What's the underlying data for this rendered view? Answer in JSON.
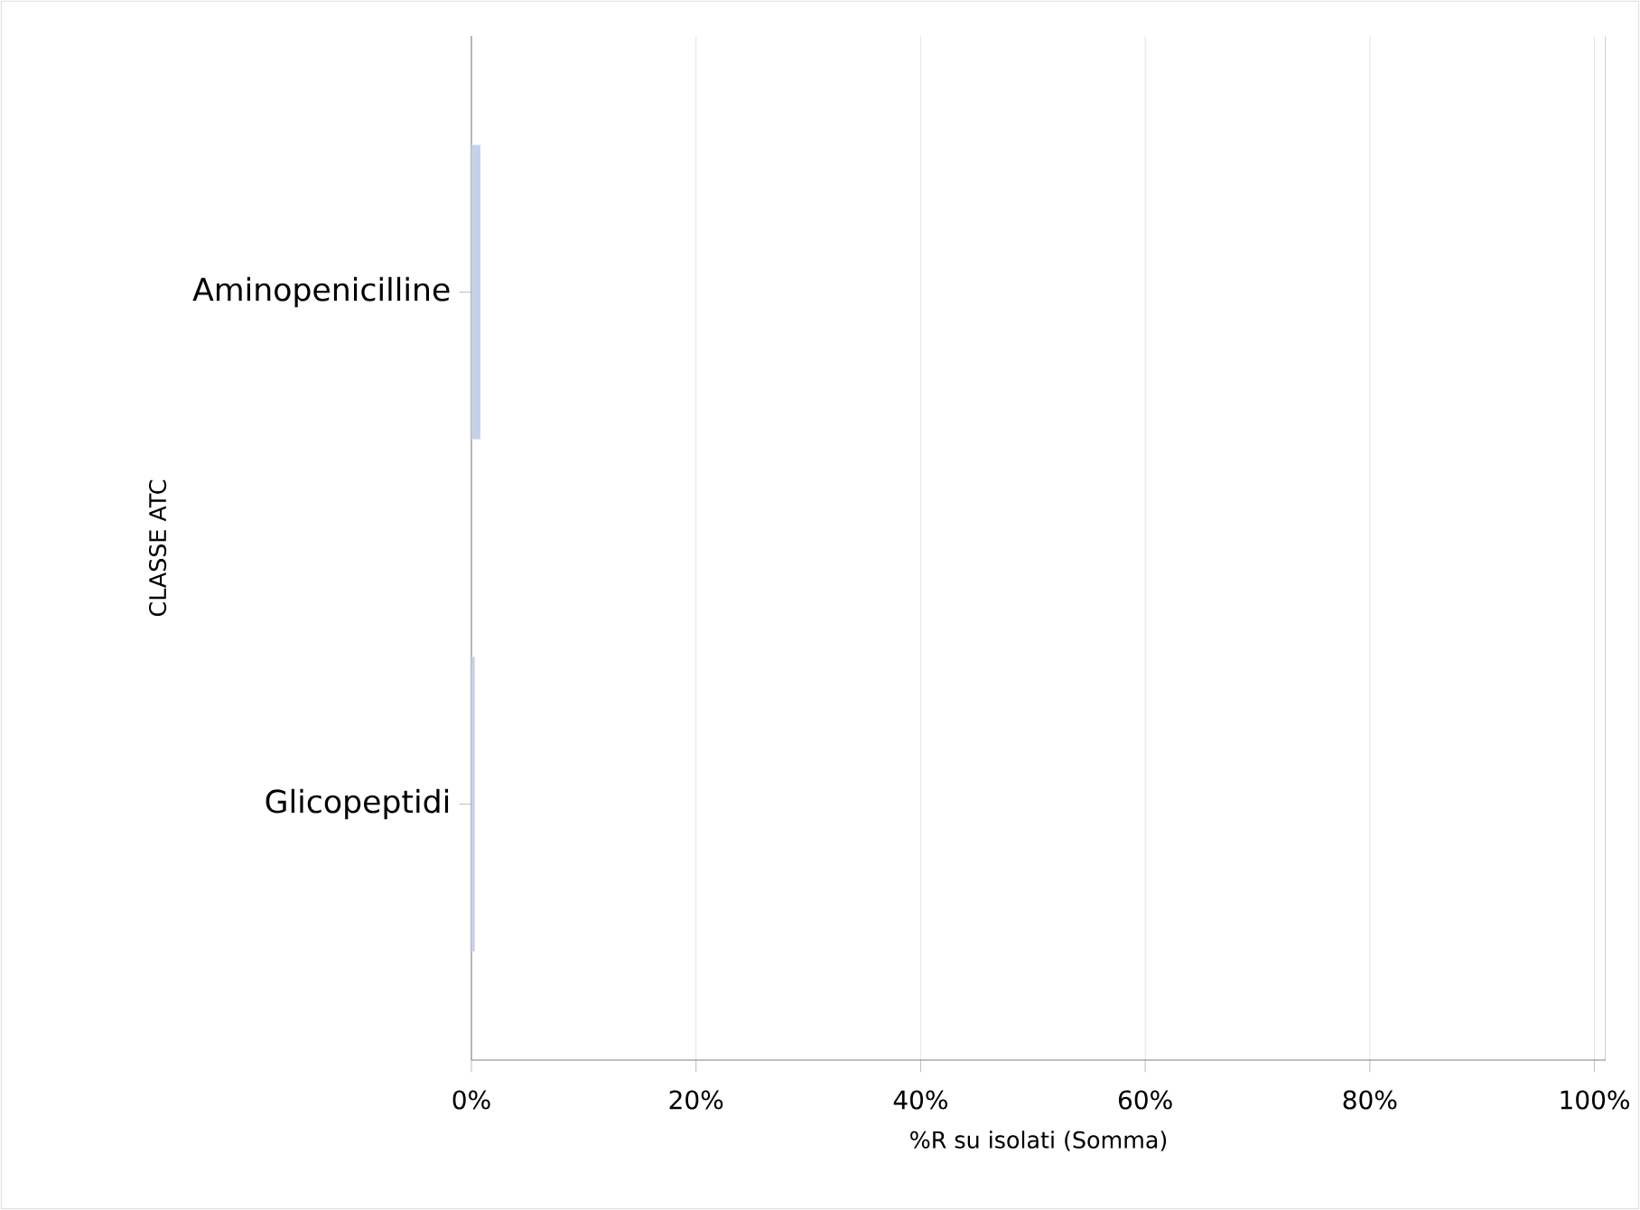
{
  "chart_data": {
    "type": "bar",
    "orientation": "horizontal",
    "categories": [
      "Aminopenicilline",
      "Glicopeptidi"
    ],
    "values": [
      0.8,
      0.3
    ],
    "color": "#c5d1e8",
    "xlabel": "%R su isolati (Somma)",
    "ylabel": "CLASSE ATC",
    "xlim": [
      0,
      101
    ],
    "xticks": [
      {
        "value": 0,
        "label": "0%"
      },
      {
        "value": 20,
        "label": "20%"
      },
      {
        "value": 40,
        "label": "40%"
      },
      {
        "value": 60,
        "label": "60%"
      },
      {
        "value": 80,
        "label": "80%"
      },
      {
        "value": 100,
        "label": "100%"
      }
    ],
    "grid": "x"
  }
}
